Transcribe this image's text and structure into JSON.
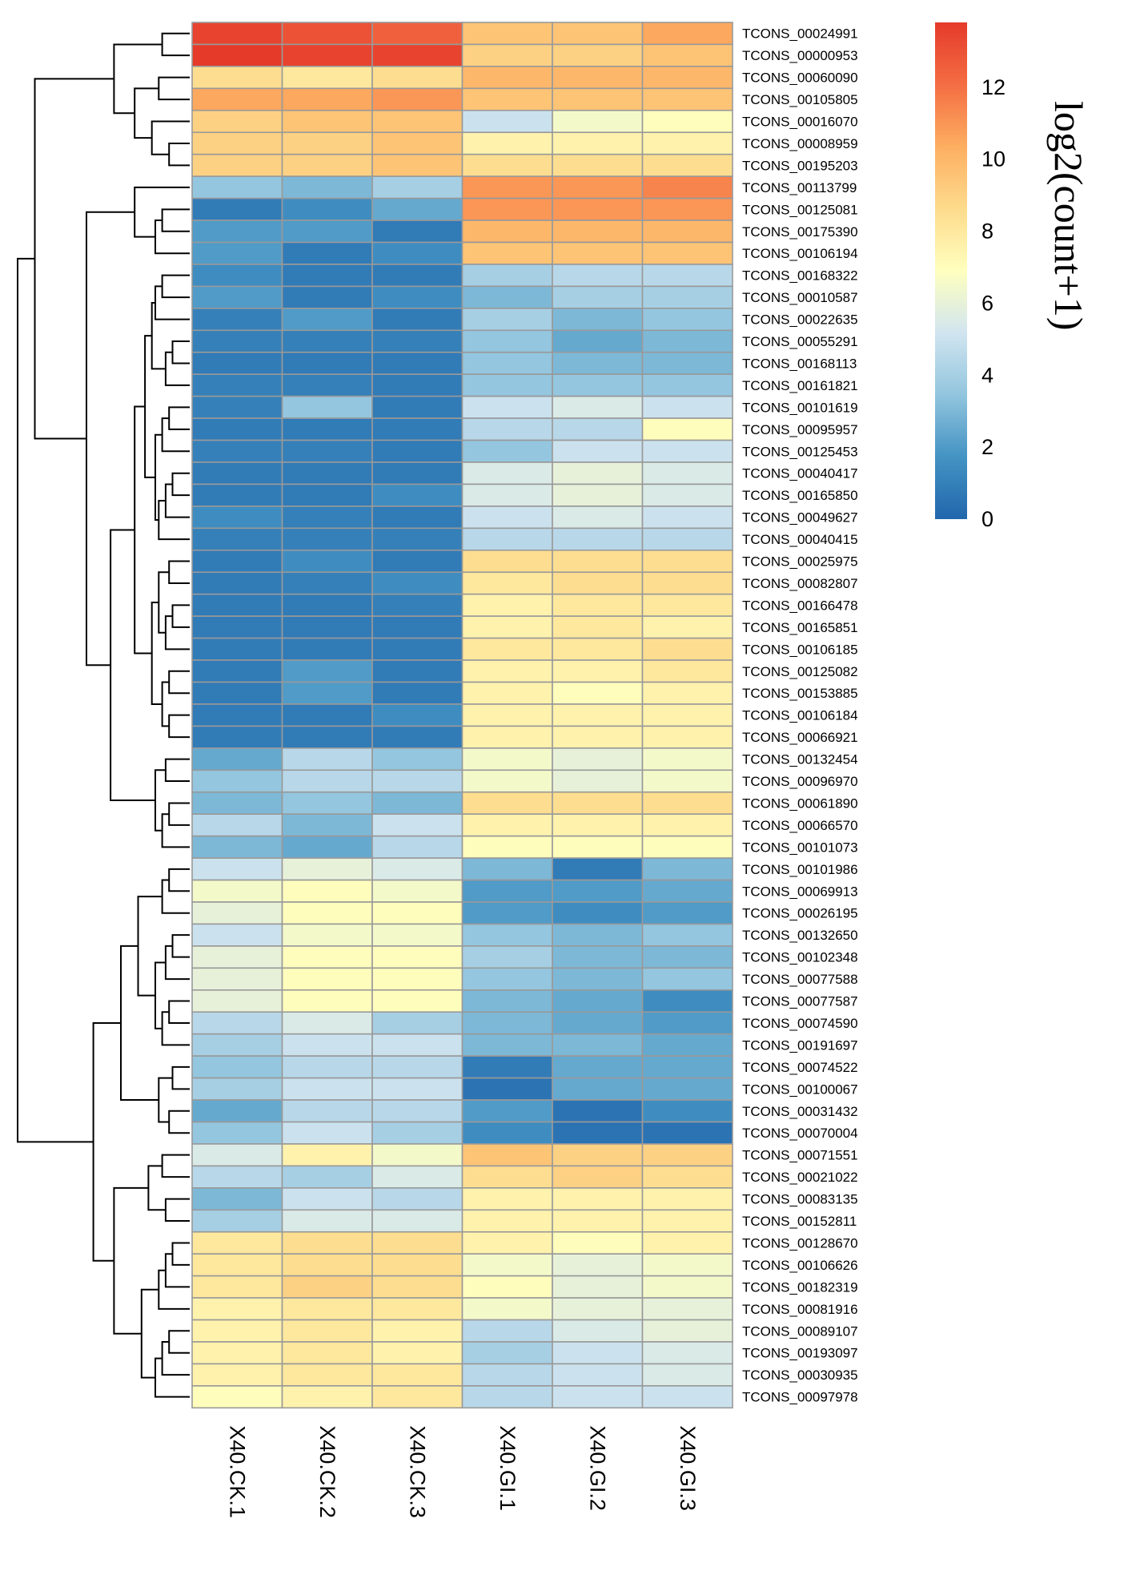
{
  "chart_data": {
    "type": "heatmap",
    "title": "",
    "columns": [
      "X40.CK.1",
      "X40.CK.2",
      "X40.CK.3",
      "X40.GI.1",
      "X40.GI.2",
      "X40.GI.3"
    ],
    "rows": [
      "TCONS_00024991",
      "TCONS_00000953",
      "TCONS_00060090",
      "TCONS_00105805",
      "TCONS_00016070",
      "TCONS_00008959",
      "TCONS_00195203",
      "TCONS_00113799",
      "TCONS_00125081",
      "TCONS_00175390",
      "TCONS_00106194",
      "TCONS_00168322",
      "TCONS_00010587",
      "TCONS_00022635",
      "TCONS_00055291",
      "TCONS_00168113",
      "TCONS_00161821",
      "TCONS_00101619",
      "TCONS_00095957",
      "TCONS_00125453",
      "TCONS_00040417",
      "TCONS_00165850",
      "TCONS_00049627",
      "TCONS_00040415",
      "TCONS_00025975",
      "TCONS_00082807",
      "TCONS_00166478",
      "TCONS_00165851",
      "TCONS_00106185",
      "TCONS_00125082",
      "TCONS_00153885",
      "TCONS_00106184",
      "TCONS_00066921",
      "TCONS_00132454",
      "TCONS_00096970",
      "TCONS_00061890",
      "TCONS_00066570",
      "TCONS_00101073",
      "TCONS_00101986",
      "TCONS_00069913",
      "TCONS_00026195",
      "TCONS_00132650",
      "TCONS_00102348",
      "TCONS_00077588",
      "TCONS_00077587",
      "TCONS_00074590",
      "TCONS_00191697",
      "TCONS_00074522",
      "TCONS_00100067",
      "TCONS_00031432",
      "TCONS_00070004",
      "TCONS_00071551",
      "TCONS_00021022",
      "TCONS_00083135",
      "TCONS_00152811",
      "TCONS_00128670",
      "TCONS_00106626",
      "TCONS_00182319",
      "TCONS_00081916",
      "TCONS_00089107",
      "TCONS_00193097",
      "TCONS_00030935",
      "TCONS_00097978"
    ],
    "values": [
      [
        13.5,
        13.0,
        12.5,
        9.5,
        9.5,
        10.5
      ],
      [
        13.8,
        13.5,
        13.5,
        9.0,
        9.0,
        9.5
      ],
      [
        8.5,
        8.0,
        8.5,
        10.0,
        10.0,
        10.0
      ],
      [
        10.5,
        10.5,
        11.0,
        9.5,
        9.5,
        9.5
      ],
      [
        9.0,
        9.5,
        9.5,
        5.0,
        6.5,
        7.0
      ],
      [
        9.0,
        9.0,
        9.5,
        7.5,
        7.5,
        7.5
      ],
      [
        9.0,
        9.0,
        9.5,
        8.5,
        8.5,
        8.5
      ],
      [
        3.5,
        3.0,
        4.0,
        11.0,
        11.0,
        11.5
      ],
      [
        0.8,
        1.5,
        2.5,
        11.0,
        11.0,
        11.0
      ],
      [
        2.0,
        2.0,
        0.8,
        10.0,
        10.0,
        10.0
      ],
      [
        2.0,
        0.8,
        1.5,
        9.5,
        9.5,
        9.5
      ],
      [
        1.5,
        0.8,
        0.8,
        4.0,
        4.5,
        4.5
      ],
      [
        2.0,
        0.8,
        1.5,
        3.0,
        4.0,
        4.0
      ],
      [
        1.0,
        2.0,
        0.8,
        4.0,
        3.0,
        3.5
      ],
      [
        1.0,
        1.0,
        1.0,
        3.5,
        2.5,
        3.0
      ],
      [
        0.8,
        0.8,
        0.8,
        3.5,
        3.0,
        3.0
      ],
      [
        1.0,
        1.0,
        0.8,
        3.5,
        3.5,
        3.5
      ],
      [
        1.0,
        3.5,
        0.8,
        5.0,
        5.5,
        5.0
      ],
      [
        0.8,
        0.8,
        0.8,
        4.5,
        4.5,
        7.0
      ],
      [
        1.0,
        1.0,
        0.8,
        3.5,
        5.0,
        5.0
      ],
      [
        0.8,
        0.8,
        0.8,
        5.5,
        6.0,
        5.5
      ],
      [
        0.8,
        0.8,
        1.5,
        5.5,
        6.0,
        5.5
      ],
      [
        1.5,
        1.0,
        0.8,
        5.0,
        5.5,
        5.0
      ],
      [
        1.0,
        1.0,
        1.0,
        4.5,
        4.5,
        4.5
      ],
      [
        0.8,
        1.5,
        0.8,
        8.5,
        8.5,
        8.5
      ],
      [
        0.8,
        1.0,
        1.5,
        8.0,
        8.5,
        8.5
      ],
      [
        0.8,
        0.8,
        1.0,
        7.5,
        8.0,
        8.0
      ],
      [
        0.8,
        0.8,
        0.8,
        7.5,
        8.0,
        7.5
      ],
      [
        0.8,
        0.8,
        0.8,
        8.0,
        8.0,
        8.5
      ],
      [
        0.8,
        2.0,
        0.8,
        7.5,
        7.5,
        8.0
      ],
      [
        0.8,
        2.0,
        0.8,
        7.5,
        7.0,
        7.5
      ],
      [
        0.8,
        0.8,
        1.5,
        7.5,
        7.5,
        7.5
      ],
      [
        0.8,
        0.8,
        0.8,
        7.5,
        7.5,
        7.5
      ],
      [
        2.5,
        4.5,
        3.5,
        6.5,
        6.0,
        6.5
      ],
      [
        3.5,
        4.5,
        4.5,
        6.5,
        6.0,
        6.5
      ],
      [
        3.0,
        3.5,
        3.0,
        8.5,
        8.5,
        8.5
      ],
      [
        4.5,
        3.0,
        5.0,
        7.5,
        7.5,
        7.5
      ],
      [
        3.0,
        2.5,
        4.5,
        7.0,
        7.0,
        7.0
      ],
      [
        5.0,
        6.0,
        5.5,
        3.0,
        0.8,
        3.0
      ],
      [
        6.5,
        7.0,
        6.5,
        2.0,
        2.0,
        2.5
      ],
      [
        6.0,
        7.0,
        7.0,
        2.0,
        1.5,
        2.0
      ],
      [
        5.0,
        6.5,
        6.5,
        3.5,
        3.0,
        3.5
      ],
      [
        6.0,
        7.0,
        7.0,
        4.0,
        3.0,
        3.0
      ],
      [
        6.0,
        7.0,
        7.0,
        3.5,
        3.0,
        3.5
      ],
      [
        6.0,
        7.0,
        7.0,
        3.0,
        2.5,
        1.5
      ],
      [
        4.5,
        5.5,
        4.0,
        3.0,
        2.5,
        2.0
      ],
      [
        4.0,
        5.0,
        5.0,
        3.0,
        3.0,
        2.5
      ],
      [
        3.5,
        4.5,
        4.5,
        0.8,
        2.5,
        2.5
      ],
      [
        4.0,
        5.0,
        5.0,
        0.5,
        2.5,
        2.5
      ],
      [
        2.5,
        4.5,
        4.5,
        2.0,
        0.5,
        1.5
      ],
      [
        3.5,
        5.0,
        4.0,
        1.5,
        0.5,
        0.5
      ],
      [
        5.5,
        7.5,
        6.5,
        9.5,
        9.0,
        9.0
      ],
      [
        4.5,
        4.0,
        5.5,
        8.5,
        9.0,
        8.5
      ],
      [
        3.0,
        5.0,
        4.5,
        7.5,
        7.5,
        7.5
      ],
      [
        4.0,
        5.5,
        5.5,
        7.5,
        7.5,
        7.5
      ],
      [
        8.0,
        8.5,
        8.5,
        7.5,
        7.0,
        7.5
      ],
      [
        8.0,
        8.5,
        8.5,
        6.5,
        6.0,
        6.5
      ],
      [
        8.0,
        9.0,
        8.5,
        7.0,
        6.0,
        6.5
      ],
      [
        7.5,
        8.0,
        8.0,
        6.5,
        6.0,
        6.0
      ],
      [
        7.5,
        8.0,
        7.5,
        4.5,
        5.5,
        6.0
      ],
      [
        7.5,
        8.0,
        7.5,
        4.0,
        5.0,
        5.5
      ],
      [
        7.5,
        8.0,
        8.0,
        4.5,
        5.0,
        5.5
      ],
      [
        7.0,
        7.5,
        8.0,
        4.5,
        5.0,
        5.0
      ]
    ],
    "legend": {
      "title": "log2(count+1)",
      "range": [
        0,
        13.8
      ],
      "ticks": [
        "0",
        "2",
        "4",
        "6",
        "8",
        "10",
        "12"
      ],
      "colors": [
        "#2166ac",
        "#4393c3",
        "#92c5de",
        "#d1e5f0",
        "#ffffbf",
        "#fddb8c",
        "#fdae61",
        "#f46d43",
        "#e53a2a"
      ],
      "border_color": "#999999"
    },
    "dendrogram": {
      "merges": [
        [
          0,
          1,
          0.8
        ],
        [
          2,
          3,
          0.9
        ],
        [
          5,
          6,
          0.6
        ],
        [
          4,
          65,
          1.1
        ],
        [
          64,
          66,
          1.6
        ],
        [
          63,
          67,
          2.2
        ],
        [
          8,
          9,
          0.8
        ],
        [
          69,
          10,
          1.0
        ],
        [
          7,
          70,
          1.6
        ],
        [
          11,
          12,
          0.8
        ],
        [
          72,
          13,
          1.0
        ],
        [
          14,
          15,
          0.5
        ],
        [
          74,
          16,
          0.7
        ],
        [
          73,
          75,
          1.1
        ],
        [
          17,
          18,
          0.6
        ],
        [
          77,
          19,
          0.8
        ],
        [
          20,
          21,
          0.5
        ],
        [
          79,
          22,
          0.7
        ],
        [
          80,
          23,
          0.9
        ],
        [
          78,
          81,
          1.0
        ],
        [
          76,
          82,
          1.3
        ],
        [
          24,
          25,
          0.6
        ],
        [
          26,
          27,
          0.5
        ],
        [
          85,
          28,
          0.7
        ],
        [
          84,
          86,
          0.9
        ],
        [
          29,
          30,
          0.6
        ],
        [
          31,
          32,
          0.6
        ],
        [
          88,
          89,
          0.8
        ],
        [
          87,
          90,
          1.1
        ],
        [
          83,
          91,
          1.6
        ],
        [
          33,
          34,
          0.7
        ],
        [
          35,
          36,
          0.6
        ],
        [
          94,
          37,
          0.8
        ],
        [
          93,
          95,
          1.0
        ],
        [
          92,
          96,
          2.3
        ],
        [
          71,
          97,
          3.0
        ],
        [
          68,
          98,
          4.5
        ],
        [
          38,
          39,
          0.6
        ],
        [
          100,
          40,
          0.8
        ],
        [
          41,
          42,
          0.5
        ],
        [
          102,
          43,
          0.7
        ],
        [
          44,
          45,
          0.6
        ],
        [
          104,
          46,
          0.8
        ],
        [
          103,
          105,
          1.0
        ],
        [
          101,
          106,
          1.5
        ],
        [
          47,
          48,
          0.5
        ],
        [
          49,
          50,
          0.6
        ],
        [
          108,
          109,
          0.9
        ],
        [
          107,
          110,
          2.0
        ],
        [
          51,
          52,
          0.8
        ],
        [
          53,
          54,
          0.7
        ],
        [
          112,
          113,
          1.2
        ],
        [
          55,
          56,
          0.5
        ],
        [
          115,
          57,
          0.7
        ],
        [
          116,
          58,
          0.9
        ],
        [
          59,
          60,
          0.6
        ],
        [
          118,
          61,
          0.8
        ],
        [
          119,
          62,
          1.0
        ],
        [
          117,
          120,
          1.4
        ],
        [
          114,
          121,
          2.2
        ],
        [
          111,
          122,
          2.8
        ],
        [
          99,
          123,
          5.0
        ]
      ],
      "max_height": 5.0
    }
  }
}
